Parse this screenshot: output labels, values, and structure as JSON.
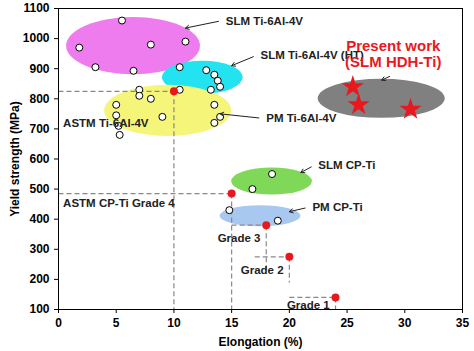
{
  "chart_data": {
    "type": "scatter",
    "xlabel": "Elongation (%)",
    "ylabel": "Yield strength (MPa)",
    "xlim": [
      0,
      35
    ],
    "xticks": [
      0,
      5,
      10,
      15,
      20,
      25,
      30,
      35
    ],
    "ylim": [
      100,
      1100
    ],
    "yticks": [
      100,
      200,
      300,
      400,
      500,
      600,
      700,
      800,
      900,
      1000,
      1100
    ],
    "grid": false,
    "series": [
      {
        "name": "SLM Ti-6Al-4V",
        "color": "#ee7cee",
        "marker": "open_circle",
        "x": [
          1.8,
          3.2,
          5.5,
          6.5,
          8.0,
          11.0
        ],
        "y": [
          970,
          905,
          1060,
          893,
          980,
          990
        ],
        "region": {
          "cx": 6.5,
          "cy": 975,
          "rx": 5.8,
          "ry": 95
        }
      },
      {
        "name": "SLM Ti-6Al-4V (HT)",
        "color": "#22e3ef",
        "marker": "open_circle",
        "x": [
          10.5,
          12.8,
          13.5,
          13.8,
          14.0,
          13.2
        ],
        "y": [
          905,
          895,
          880,
          860,
          840,
          830
        ],
        "region": {
          "cx": 12.5,
          "cy": 870,
          "rx": 3.5,
          "ry": 55
        }
      },
      {
        "name": "PM Ti-6Al-4V",
        "color": "#f5f57a",
        "marker": "open_circle",
        "x": [
          5.0,
          5.0,
          7.0,
          7.0,
          8.0,
          5.2,
          5.3,
          9.0,
          10.5,
          13.5,
          14.0,
          13.5
        ],
        "y": [
          780,
          745,
          830,
          810,
          800,
          710,
          680,
          740,
          830,
          720,
          740,
          780
        ],
        "region": {
          "cx": 9.5,
          "cy": 760,
          "rx": 5.5,
          "ry": 85
        }
      },
      {
        "name": "SLM CP-Ti",
        "color": "#80d858",
        "marker": "open_circle",
        "x": [
          16.8,
          18.5
        ],
        "y": [
          500,
          550
        ],
        "region": {
          "cx": 18.5,
          "cy": 525,
          "rx": 3.5,
          "ry": 45
        }
      },
      {
        "name": "PM CP-Ti",
        "color": "#a8c8f0",
        "marker": "open_circle",
        "x": [
          14.8,
          19.0
        ],
        "y": [
          430,
          395
        ],
        "region": {
          "cx": 17.5,
          "cy": 410,
          "rx": 3.5,
          "ry": 35
        }
      },
      {
        "name": "Present work",
        "label_lines": [
          "Present work",
          "(SLM HDH-Ti)"
        ],
        "color": "#808080",
        "label_color": "#e8191e",
        "marker": "star",
        "marker_color": "#e8191e",
        "x": [
          25.5,
          26.0,
          30.5
        ],
        "y": [
          840,
          780,
          765
        ],
        "region": {
          "cx": 28.0,
          "cy": 800,
          "rx": 5.5,
          "ry": 65
        }
      }
    ],
    "references": [
      {
        "label": "ASTM Ti-6Al-4V",
        "x": 10,
        "y": 825,
        "guide_x_start": 0,
        "guide_y_end": 100
      },
      {
        "label": "ASTM CP-Ti Grade 4",
        "x": 15,
        "y": 485,
        "guide_x_start": 0,
        "guide_y_end": 100
      },
      {
        "label": "Grade 3",
        "x": 18,
        "y": 380,
        "guide_x_start": 15,
        "guide_y_end": 230
      },
      {
        "label": "Grade 2",
        "x": 20,
        "y": 275,
        "guide_x_start": 17,
        "guide_y_end": 190
      },
      {
        "label": "Grade 1",
        "x": 24,
        "y": 140,
        "guide_x_start": 20,
        "guide_y_end": 100
      }
    ],
    "reference_color": "#e8191e"
  }
}
